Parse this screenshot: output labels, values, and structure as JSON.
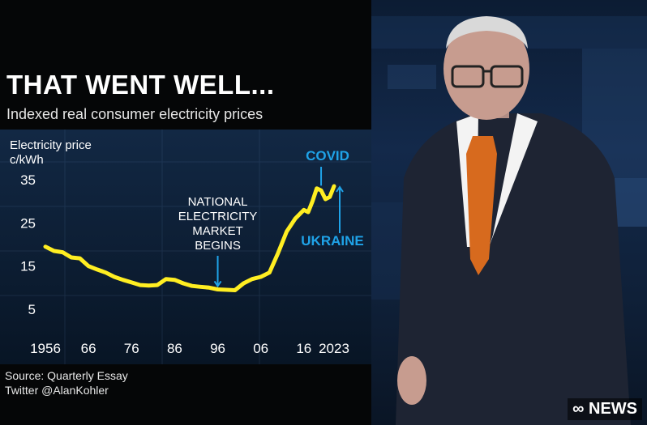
{
  "graphic": {
    "title": "THAT WENT WELL...",
    "subtitle": "Indexed real consumer electricity prices",
    "source_line": "Source: Quarterly Essay",
    "twitter_line": "Twitter @AlanKohler"
  },
  "colors": {
    "line": "#ffee22",
    "annotation_blue": "#1fa3e8",
    "text": "#ffffff",
    "chart_bg": "#0b1a2d"
  },
  "chart_data": {
    "type": "line",
    "title": "THAT WENT WELL...",
    "subtitle": "Indexed real consumer electricity prices",
    "ylabel_lines": [
      "Electricity price",
      "c/kWh"
    ],
    "x_tick_labels": [
      "1956",
      "66",
      "76",
      "86",
      "96",
      "06",
      "16",
      "2023"
    ],
    "x_tick_values": [
      1956,
      1966,
      1976,
      1986,
      1996,
      2006,
      2016,
      2023
    ],
    "y_ticks": [
      5,
      15,
      25,
      35
    ],
    "xlim": [
      1956,
      2023
    ],
    "ylim": [
      5,
      35
    ],
    "grid": false,
    "x": [
      1956,
      1958,
      1960,
      1962,
      1964,
      1966,
      1968,
      1970,
      1972,
      1974,
      1976,
      1978,
      1980,
      1982,
      1984,
      1986,
      1988,
      1990,
      1992,
      1994,
      1996,
      1998,
      2000,
      2002,
      2004,
      2006,
      2008,
      2010,
      2012,
      2014,
      2016,
      2017,
      2018,
      2019,
      2020,
      2021,
      2022,
      2023
    ],
    "values": [
      19.5,
      18.5,
      18.2,
      17.0,
      16.8,
      15.0,
      14.2,
      13.5,
      12.5,
      11.8,
      11.2,
      10.6,
      10.5,
      10.6,
      12.0,
      11.8,
      11.0,
      10.4,
      10.2,
      10.0,
      9.6,
      9.5,
      9.4,
      11.0,
      12.0,
      12.5,
      13.5,
      18.0,
      23.0,
      26.0,
      28.0,
      27.5,
      30.0,
      33.0,
      32.5,
      30.5,
      31.0,
      33.5
    ],
    "annotations": [
      {
        "lines": [
          "NATIONAL",
          "ELECTRICITY",
          "MARKET",
          "BEGINS"
        ],
        "x": 1996,
        "y": 9.6
      },
      {
        "text": "COVID",
        "x": 2020,
        "y": 32.5
      },
      {
        "text": "UKRAINE",
        "x": 2023,
        "y": 33.5
      }
    ]
  },
  "broadcast": {
    "logo_text": "NEWS"
  }
}
